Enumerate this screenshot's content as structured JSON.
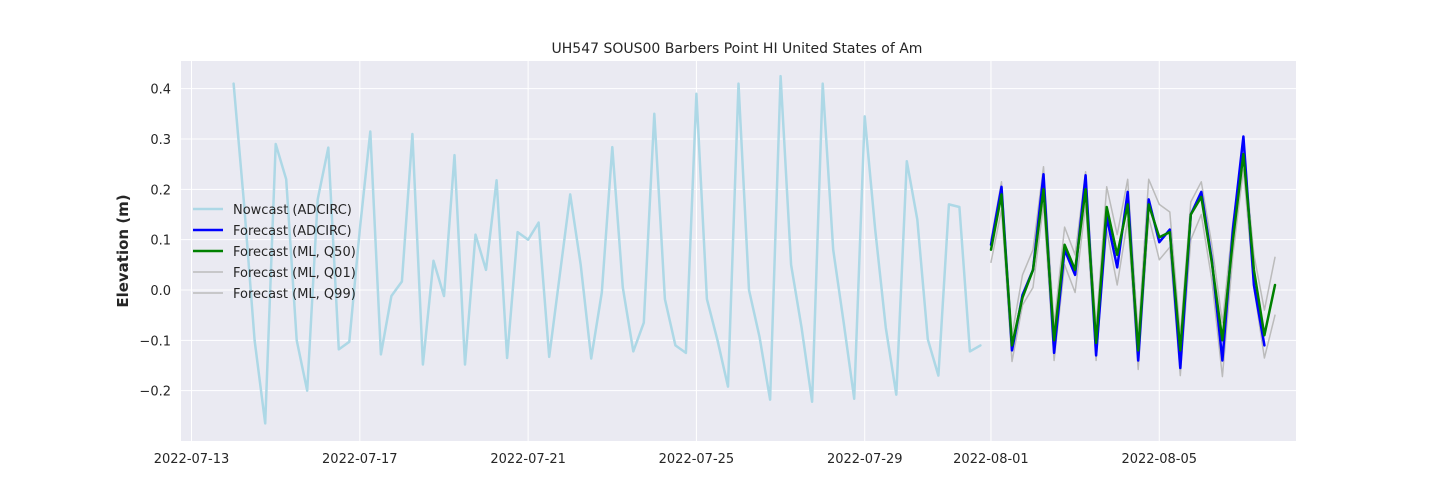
{
  "chart_data": {
    "type": "line",
    "title": "UH547 SOUS00 Barbers Point HI United States of Am",
    "xlabel": "",
    "ylabel": "Elevation (m)",
    "x_range": [
      "2022-07-12 18:00",
      "2022-08-08 06:00"
    ],
    "ylim": [
      -0.3,
      0.455
    ],
    "x_ticks": [
      "2022-07-13",
      "2022-07-17",
      "2022-07-21",
      "2022-07-25",
      "2022-07-29",
      "2022-08-01",
      "2022-08-05"
    ],
    "y_ticks": [
      -0.2,
      -0.1,
      0.0,
      0.1,
      0.2,
      0.3,
      0.4
    ],
    "y_tick_labels": [
      "−0.2",
      "−0.1",
      "0.0",
      "0.1",
      "0.2",
      "0.3",
      "0.4"
    ],
    "grid": true,
    "legend_position": "center-left",
    "background": "#eaeaf2",
    "series": [
      {
        "name": "Nowcast (ADCIRC)",
        "color": "#add8e6",
        "width": 2.5,
        "x": [
          "2022-07-14 00:00",
          "2022-07-14 06:00",
          "2022-07-14 12:00",
          "2022-07-14 18:00",
          "2022-07-15 00:00",
          "2022-07-15 06:00",
          "2022-07-15 12:00",
          "2022-07-15 18:00",
          "2022-07-16 00:00",
          "2022-07-16 06:00",
          "2022-07-16 12:00",
          "2022-07-16 18:00",
          "2022-07-17 00:00",
          "2022-07-17 06:00",
          "2022-07-17 12:00",
          "2022-07-17 18:00",
          "2022-07-18 00:00",
          "2022-07-18 06:00",
          "2022-07-18 12:00",
          "2022-07-18 18:00",
          "2022-07-19 00:00",
          "2022-07-19 06:00",
          "2022-07-19 12:00",
          "2022-07-19 18:00",
          "2022-07-20 00:00",
          "2022-07-20 06:00",
          "2022-07-20 12:00",
          "2022-07-20 18:00",
          "2022-07-21 00:00",
          "2022-07-21 06:00",
          "2022-07-21 12:00",
          "2022-07-22 00:00",
          "2022-07-22 06:00",
          "2022-07-22 12:00",
          "2022-07-22 18:00",
          "2022-07-23 00:00",
          "2022-07-23 06:00",
          "2022-07-23 12:00",
          "2022-07-23 18:00",
          "2022-07-24 00:00",
          "2022-07-24 06:00",
          "2022-07-24 12:00",
          "2022-07-24 18:00",
          "2022-07-25 00:00",
          "2022-07-25 06:00",
          "2022-07-25 12:00",
          "2022-07-25 18:00",
          "2022-07-26 00:00",
          "2022-07-26 06:00",
          "2022-07-26 12:00",
          "2022-07-26 18:00",
          "2022-07-27 00:00",
          "2022-07-27 06:00",
          "2022-07-27 12:00",
          "2022-07-27 18:00",
          "2022-07-28 00:00",
          "2022-07-28 06:00",
          "2022-07-28 12:00",
          "2022-07-28 18:00",
          "2022-07-29 00:00",
          "2022-07-29 06:00",
          "2022-07-29 12:00",
          "2022-07-29 18:00",
          "2022-07-30 00:00",
          "2022-07-30 06:00",
          "2022-07-30 12:00",
          "2022-07-30 18:00",
          "2022-07-31 00:00",
          "2022-07-31 06:00",
          "2022-07-31 12:00",
          "2022-07-31 18:00"
        ],
        "y": [
          0.41,
          0.17,
          -0.1,
          -0.265,
          0.29,
          0.22,
          -0.1,
          -0.2,
          0.18,
          0.283,
          -0.118,
          -0.103,
          0.12,
          0.315,
          -0.128,
          -0.012,
          0.017,
          0.31,
          -0.148,
          0.058,
          -0.012,
          0.268,
          -0.148,
          0.11,
          0.04,
          0.218,
          -0.135,
          0.115,
          0.1,
          0.134,
          -0.133,
          0.19,
          0.05,
          -0.136,
          -0.005,
          0.284,
          0.005,
          -0.122,
          -0.065,
          0.35,
          -0.018,
          -0.11,
          -0.125,
          0.39,
          -0.018,
          -0.1,
          -0.192,
          0.41,
          0,
          -0.093,
          -0.218,
          0.425,
          0.05,
          -0.075,
          -0.222,
          0.41,
          0.08,
          -0.065,
          -0.216,
          0.345,
          0.12,
          -0.075,
          -0.208,
          0.256,
          0.14,
          -0.098,
          -0.17,
          0.17,
          0.165,
          -0.122,
          -0.11
        ]
      },
      {
        "name": "Forecast (ADCIRC)",
        "color": "#0000ff",
        "width": 2.5,
        "x": [
          "2022-08-01 00:00",
          "2022-08-01 06:00",
          "2022-08-01 12:00",
          "2022-08-01 18:00",
          "2022-08-02 00:00",
          "2022-08-02 06:00",
          "2022-08-02 12:00",
          "2022-08-02 18:00",
          "2022-08-03 00:00",
          "2022-08-03 06:00",
          "2022-08-03 12:00",
          "2022-08-03 18:00",
          "2022-08-04 00:00",
          "2022-08-04 06:00",
          "2022-08-04 12:00",
          "2022-08-04 18:00",
          "2022-08-05 00:00",
          "2022-08-05 06:00",
          "2022-08-05 12:00",
          "2022-08-05 18:00",
          "2022-08-06 00:00",
          "2022-08-06 06:00",
          "2022-08-06 12:00",
          "2022-08-06 18:00",
          "2022-08-07 00:00",
          "2022-08-07 06:00",
          "2022-08-07 12:00",
          "2022-08-07 18:00"
        ],
        "y": [
          0.09,
          0.205,
          -0.12,
          -0.01,
          0.04,
          0.23,
          -0.125,
          0.08,
          0.03,
          0.228,
          -0.13,
          0.145,
          0.045,
          0.195,
          -0.14,
          0.18,
          0.095,
          0.12,
          -0.155,
          0.15,
          0.195,
          0.06,
          -0.14,
          0.12,
          0.305,
          0.01,
          -0.11,
          null
        ]
      },
      {
        "name": "Forecast (ML, Q50)",
        "color": "#008000",
        "width": 2.5,
        "x": [
          "2022-08-01 00:00",
          "2022-08-01 06:00",
          "2022-08-01 12:00",
          "2022-08-01 18:00",
          "2022-08-02 00:00",
          "2022-08-02 06:00",
          "2022-08-02 12:00",
          "2022-08-02 18:00",
          "2022-08-03 00:00",
          "2022-08-03 06:00",
          "2022-08-03 12:00",
          "2022-08-03 18:00",
          "2022-08-04 00:00",
          "2022-08-04 06:00",
          "2022-08-04 12:00",
          "2022-08-04 18:00",
          "2022-08-05 00:00",
          "2022-08-05 06:00",
          "2022-08-05 12:00",
          "2022-08-05 18:00",
          "2022-08-06 00:00",
          "2022-08-06 06:00",
          "2022-08-06 12:00",
          "2022-08-06 18:00",
          "2022-08-07 00:00",
          "2022-08-07 06:00",
          "2022-08-07 12:00",
          "2022-08-07 18:00"
        ],
        "y": [
          0.08,
          0.19,
          -0.11,
          -0.015,
          0.04,
          0.2,
          -0.1,
          0.09,
          0.04,
          0.2,
          -0.105,
          0.165,
          0.07,
          0.17,
          -0.12,
          0.17,
          0.105,
          0.115,
          -0.12,
          0.15,
          0.185,
          0.055,
          -0.1,
          0.1,
          0.27,
          0.04,
          -0.09,
          0.01
        ]
      },
      {
        "name": "Forecast (ML, Q01)",
        "color": "#bbbbbb",
        "width": 1.5,
        "x": [
          "2022-08-01 00:00",
          "2022-08-01 06:00",
          "2022-08-01 12:00",
          "2022-08-01 18:00",
          "2022-08-02 00:00",
          "2022-08-02 06:00",
          "2022-08-02 12:00",
          "2022-08-02 18:00",
          "2022-08-03 00:00",
          "2022-08-03 06:00",
          "2022-08-03 12:00",
          "2022-08-03 18:00",
          "2022-08-04 00:00",
          "2022-08-04 06:00",
          "2022-08-04 12:00",
          "2022-08-04 18:00",
          "2022-08-05 00:00",
          "2022-08-05 06:00",
          "2022-08-05 12:00",
          "2022-08-05 18:00",
          "2022-08-06 00:00",
          "2022-08-06 06:00",
          "2022-08-06 12:00",
          "2022-08-06 18:00",
          "2022-08-07 00:00",
          "2022-08-07 06:00",
          "2022-08-07 12:00",
          "2022-08-07 18:00"
        ],
        "y": [
          0.055,
          0.16,
          -0.142,
          -0.03,
          0.005,
          0.17,
          -0.14,
          0.05,
          -0.005,
          0.17,
          -0.14,
          0.12,
          0.01,
          0.14,
          -0.158,
          0.145,
          0.06,
          0.085,
          -0.17,
          0.1,
          0.15,
          0.02,
          -0.172,
          0.07,
          0.24,
          0.005,
          -0.135,
          -0.05
        ]
      },
      {
        "name": "Forecast (ML, Q99)",
        "color": "#bbbbbb",
        "width": 1.5,
        "x": [
          "2022-08-01 00:00",
          "2022-08-01 06:00",
          "2022-08-01 12:00",
          "2022-08-01 18:00",
          "2022-08-02 00:00",
          "2022-08-02 06:00",
          "2022-08-02 12:00",
          "2022-08-02 18:00",
          "2022-08-03 00:00",
          "2022-08-03 06:00",
          "2022-08-03 12:00",
          "2022-08-03 18:00",
          "2022-08-04 00:00",
          "2022-08-04 06:00",
          "2022-08-04 12:00",
          "2022-08-04 18:00",
          "2022-08-05 00:00",
          "2022-08-05 06:00",
          "2022-08-05 12:00",
          "2022-08-05 18:00",
          "2022-08-06 00:00",
          "2022-08-06 06:00",
          "2022-08-06 12:00",
          "2022-08-06 18:00",
          "2022-08-07 00:00",
          "2022-08-07 06:00",
          "2022-08-07 12:00",
          "2022-08-07 18:00"
        ],
        "y": [
          0.1,
          0.215,
          -0.09,
          0.03,
          0.08,
          0.245,
          -0.07,
          0.125,
          0.07,
          0.235,
          -0.075,
          0.205,
          0.11,
          0.22,
          -0.09,
          0.22,
          0.17,
          0.155,
          -0.09,
          0.175,
          0.215,
          0.09,
          -0.065,
          0.135,
          0.285,
          0.07,
          -0.04,
          0.065
        ]
      }
    ]
  }
}
